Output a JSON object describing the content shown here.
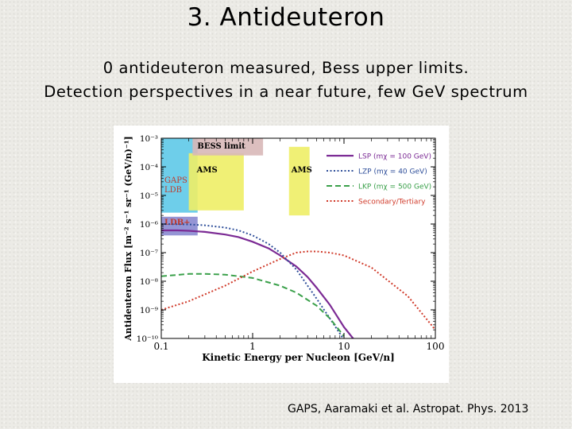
{
  "slide": {
    "title": "3. Antideuteron",
    "subtitle_line1": "0 antideuteron measured, Bess upper limits.",
    "subtitle_line2": "Detection perspectives in a near future, few GeV spectrum",
    "citation": "GAPS, Aaramaki et al. Astropat. Phys. 2013"
  },
  "chart_data": {
    "type": "line",
    "title": "",
    "xlabel": "Kinetic Energy per Nucleon [GeV/n]",
    "ylabel": "Antideuteron Flux [m⁻² s⁻¹ sr⁻¹ (GeV/n)⁻¹]",
    "xscale": "log",
    "yscale": "log",
    "xlim": [
      0.1,
      100
    ],
    "ylim": [
      1e-10,
      0.001
    ],
    "x_ticks": [
      "0.1",
      "1",
      "10",
      "100"
    ],
    "y_ticks": [
      "10⁻¹⁰",
      "10⁻⁹",
      "10⁻⁸",
      "10⁻⁷",
      "10⁻⁶",
      "10⁻⁵",
      "10⁻⁴",
      "10⁻³"
    ],
    "grid": false,
    "legend_position": "top-right",
    "regions": [
      {
        "label": "GAPS LDB",
        "xrange": [
          0.1,
          0.25
        ],
        "yrange": [
          2.5e-06,
          0.001
        ],
        "color": "#5ec9e8"
      },
      {
        "label": "LDB+",
        "xrange": [
          0.1,
          0.25
        ],
        "yrange": [
          4e-07,
          1.8e-06
        ],
        "color": "#8a8ad0"
      },
      {
        "label": "AMS",
        "xrange": [
          0.2,
          0.8
        ],
        "yrange": [
          3e-06,
          0.0003
        ],
        "color": "#eeee66"
      },
      {
        "label": "AMS",
        "xrange": [
          2.5,
          4.2
        ],
        "yrange": [
          2e-06,
          0.0005
        ],
        "color": "#eeee66"
      },
      {
        "label": "BESS limit",
        "xrange": [
          0.22,
          1.3
        ],
        "yrange": [
          0.00025,
          0.001
        ],
        "color": "#d8b8b8"
      }
    ],
    "series": [
      {
        "name": "LSP (mχ = 100 GeV)",
        "style": "solid",
        "color": "#7b2a94",
        "x": [
          0.1,
          0.15,
          0.2,
          0.3,
          0.5,
          0.7,
          1,
          1.5,
          2,
          3,
          4,
          5,
          7,
          10,
          12,
          15
        ],
        "y": [
          6e-07,
          6e-07,
          5.8e-07,
          5.3e-07,
          4.3e-07,
          3.5e-07,
          2.4e-07,
          1.4e-07,
          8e-08,
          3.3e-08,
          1.4e-08,
          6e-09,
          1.5e-09,
          2.5e-10,
          1.2e-10,
          5e-11
        ]
      },
      {
        "name": "LZP (mχ = 40 GeV)",
        "style": "dotted",
        "color": "#2f4f9a",
        "x": [
          0.1,
          0.2,
          0.3,
          0.5,
          0.7,
          1,
          1.5,
          2,
          3,
          4,
          5,
          7,
          9,
          10
        ],
        "y": [
          1e-06,
          9.7e-07,
          9e-07,
          7.5e-07,
          6e-07,
          4e-07,
          2e-07,
          1e-07,
          2.6e-08,
          7e-09,
          2.5e-09,
          5e-10,
          1.5e-10,
          9e-11
        ]
      },
      {
        "name": "LKP (mχ = 500 GeV)",
        "style": "dashed",
        "color": "#3aa04a",
        "x": [
          0.1,
          0.2,
          0.3,
          0.5,
          1,
          2,
          3,
          5,
          7,
          10
        ],
        "y": [
          1.5e-08,
          1.8e-08,
          1.8e-08,
          1.7e-08,
          1.3e-08,
          7e-09,
          4e-09,
          1.4e-09,
          5e-10,
          1.2e-10
        ]
      },
      {
        "name": "Secondary/Tertiary",
        "style": "dotted",
        "color": "#d03a2a",
        "x": [
          0.1,
          0.2,
          0.5,
          1,
          2,
          3,
          4,
          5,
          7,
          10,
          20,
          50,
          100
        ],
        "y": [
          1e-09,
          2e-09,
          7e-09,
          2.2e-08,
          6e-08,
          1e-07,
          1.1e-07,
          1.1e-07,
          1e-07,
          8e-08,
          3e-08,
          3e-09,
          2e-10
        ]
      }
    ]
  }
}
